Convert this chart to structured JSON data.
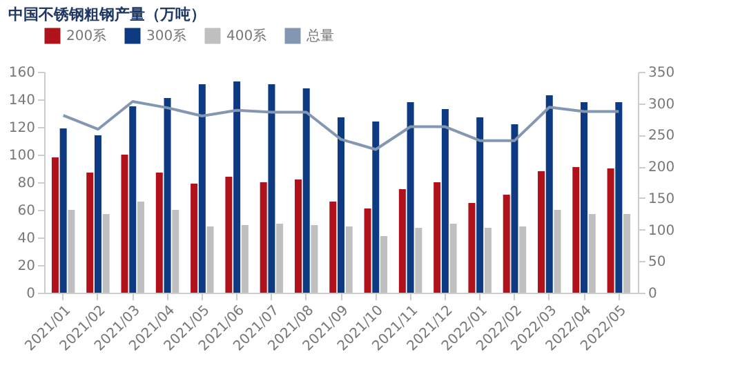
{
  "chart_data": {
    "type": "bar",
    "title": "中国不锈钢粗钢产量（万吨）",
    "categories": [
      "2021/01",
      "2021/02",
      "2021/03",
      "2021/04",
      "2021/05",
      "2021/06",
      "2021/07",
      "2021/08",
      "2021/09",
      "2021/10",
      "2021/11",
      "2021/12",
      "2022/01",
      "2022/02",
      "2022/03",
      "2022/04",
      "2022/05"
    ],
    "series": [
      {
        "name": "200系",
        "color": "#b0121b",
        "values": [
          98,
          87,
          100,
          87,
          79,
          84,
          80,
          82,
          66,
          61,
          75,
          80,
          65,
          71,
          88,
          91,
          90
        ]
      },
      {
        "name": "300系",
        "color": "#0d3a80",
        "values": [
          119,
          114,
          135,
          141,
          151,
          153,
          151,
          148,
          127,
          124,
          138,
          133,
          127,
          122,
          143,
          138,
          138
        ]
      },
      {
        "name": "400系",
        "color": "#bfbfbf",
        "values": [
          60,
          57,
          66,
          60,
          48,
          49,
          50,
          49,
          48,
          41,
          47,
          50,
          47,
          48,
          60,
          57,
          57
        ]
      },
      {
        "name": "总量",
        "color": "#8497b0",
        "type": "line",
        "axis": "y2",
        "values": [
          281,
          259,
          303,
          293,
          280,
          289,
          286,
          286,
          243,
          227,
          263,
          263,
          241,
          241,
          294,
          287,
          287
        ]
      }
    ],
    "ylim": [
      0,
      160
    ],
    "yticks": [
      0,
      20,
      40,
      60,
      80,
      100,
      120,
      140,
      160
    ],
    "y2lim": [
      0,
      350
    ],
    "y2ticks": [
      0,
      50,
      100,
      150,
      200,
      250,
      300,
      350
    ],
    "legend": "top",
    "grid": false
  }
}
